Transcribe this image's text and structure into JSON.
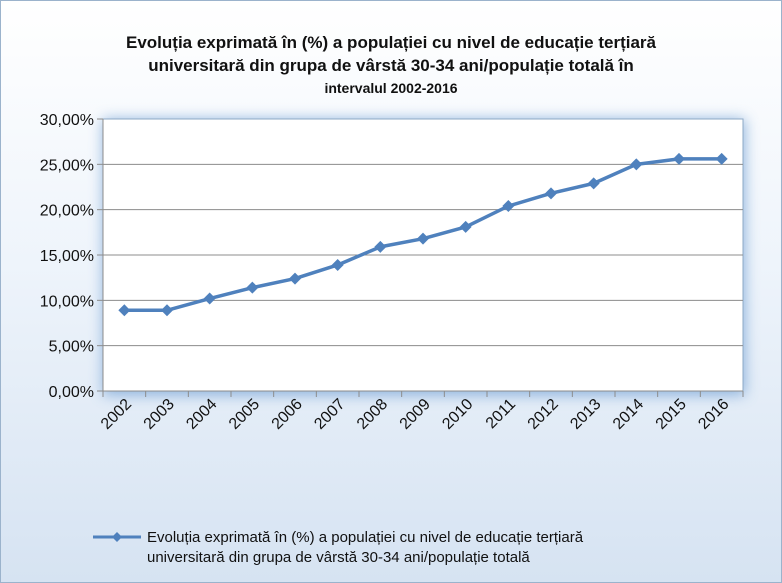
{
  "chart_data": {
    "type": "line",
    "title_lines": [
      "Evoluția exprimată în (%) a populației cu nivel de educație terțiară",
      "universitară din grupa de vârstă 30-34 ani/populație totală în",
      "intervalul 2002-2016"
    ],
    "categories": [
      "2002",
      "2003",
      "2004",
      "2005",
      "2006",
      "2007",
      "2008",
      "2009",
      "2010",
      "2011",
      "2012",
      "2013",
      "2014",
      "2015",
      "2016"
    ],
    "series": [
      {
        "name": "Evoluția exprimată în (%) a populației cu nivel de educație terțiară universitară din grupa de vârstă 30-34 ani/populație totală",
        "legend_lines": [
          "Evoluția exprimată în (%) a populației cu nivel de educație terțiară",
          "universitară din grupa de vârstă 30-34 ani/populație totală"
        ],
        "values": [
          8.9,
          8.9,
          10.2,
          11.4,
          12.4,
          13.9,
          15.9,
          16.8,
          18.1,
          20.4,
          21.8,
          22.9,
          25.0,
          25.6,
          25.6
        ],
        "color": "#4f81bd"
      }
    ],
    "y_ticks": [
      "0,00%",
      "5,00%",
      "10,00%",
      "15,00%",
      "20,00%",
      "25,00%",
      "30,00%"
    ],
    "ylim": [
      0,
      30
    ],
    "grid": true,
    "legend_position": "bottom"
  }
}
